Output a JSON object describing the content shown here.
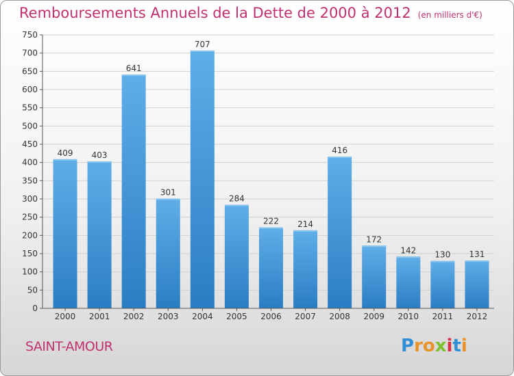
{
  "title": "Remboursements Annuels de la Dette de 2000 à 2012",
  "title_unit": "(en milliers d'€)",
  "commune": "SAINT-AMOUR",
  "brand": {
    "text": "Proxiti",
    "letters": [
      {
        "ch": "P",
        "color": "#2f8fd6"
      },
      {
        "ch": "r",
        "color": "#e8922a"
      },
      {
        "ch": "o",
        "color": "#e8922a"
      },
      {
        "ch": "x",
        "color": "#7bbf2e"
      },
      {
        "ch": "i",
        "color": "#d6334a"
      },
      {
        "ch": "t",
        "color": "#2f8fd6"
      },
      {
        "ch": "i",
        "color": "#e8922a"
      }
    ]
  },
  "colors": {
    "title": "#c0306e",
    "bar_top": "#5faee8",
    "bar_bottom": "#2b7dc3",
    "grid": "#d0d0d0",
    "axis": "#555555"
  },
  "chart_data": {
    "type": "bar",
    "title": "Remboursements Annuels de la Dette de 2000 à 2012",
    "unit": "(en milliers d'€)",
    "categories": [
      "2000",
      "2001",
      "2002",
      "2003",
      "2004",
      "2005",
      "2006",
      "2007",
      "2008",
      "2009",
      "2010",
      "2011",
      "2012"
    ],
    "values": [
      409,
      403,
      641,
      301,
      707,
      284,
      222,
      214,
      416,
      172,
      142,
      130,
      131
    ],
    "ylim": [
      0,
      750
    ],
    "yticks": [
      0,
      50,
      100,
      150,
      200,
      250,
      300,
      350,
      400,
      450,
      500,
      550,
      600,
      650,
      700,
      750
    ],
    "grid": true,
    "data_labels": true,
    "xlabel": "",
    "ylabel": ""
  }
}
